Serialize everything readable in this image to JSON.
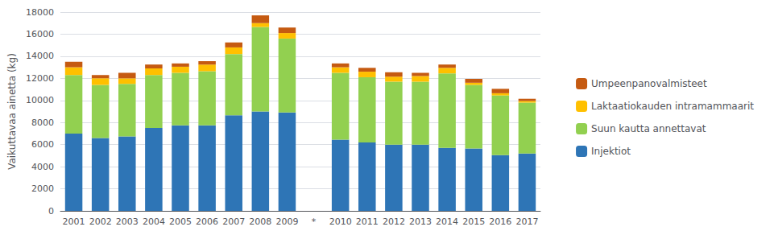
{
  "chart_data": {
    "type": "bar",
    "stacked": true,
    "categories": [
      "2001",
      "2002",
      "2003",
      "2004",
      "2005",
      "2006",
      "2007",
      "2008",
      "2009",
      "*",
      "2010",
      "2011",
      "2012",
      "2013",
      "2014",
      "2015",
      "2016",
      "2017"
    ],
    "series": [
      {
        "name": "Injektiot",
        "color": "#2E75B6",
        "values": [
          7000,
          6600,
          6750,
          7500,
          7750,
          7750,
          8650,
          9000,
          8900,
          0,
          6450,
          6200,
          6000,
          6000,
          5700,
          5650,
          5050,
          5200
        ]
      },
      {
        "name": "Suun kautta annettavat",
        "color": "#92D050",
        "values": [
          5300,
          4800,
          4750,
          4800,
          4750,
          4900,
          5550,
          7650,
          6700,
          0,
          6050,
          5900,
          5700,
          5700,
          6750,
          5750,
          5400,
          4600
        ]
      },
      {
        "name": "Laktaatiokauden intramammaarit",
        "color": "#FFC000",
        "values": [
          700,
          600,
          500,
          600,
          550,
          600,
          600,
          350,
          500,
          0,
          500,
          500,
          450,
          500,
          500,
          200,
          200,
          150
        ]
      },
      {
        "name": "Umpeenpanovalmisteet",
        "color": "#C55A11",
        "values": [
          500,
          300,
          500,
          350,
          300,
          300,
          450,
          700,
          500,
          0,
          350,
          350,
          400,
          300,
          300,
          350,
          400,
          200
        ]
      }
    ],
    "ylabel": "Vaikuttavaa ainetta (kg)",
    "ylim": [
      0,
      18000
    ],
    "yticks": [
      0,
      2000,
      4000,
      6000,
      8000,
      10000,
      12000,
      14000,
      16000,
      18000
    ],
    "grid": true,
    "legend": "right"
  }
}
